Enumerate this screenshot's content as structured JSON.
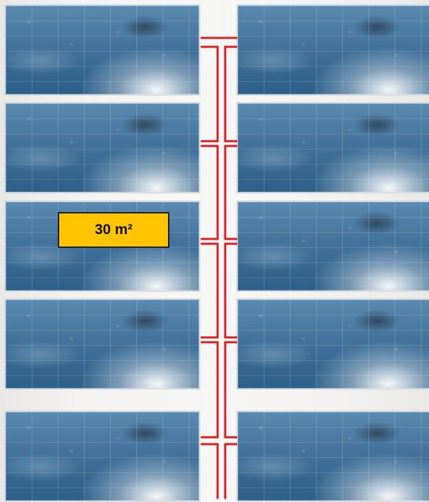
{
  "diagram": {
    "area_label": "30 m²",
    "panel_rows": 5,
    "panel_columns": 2,
    "connector_color": "#e0181f",
    "background_color": "#f3f3f1"
  }
}
